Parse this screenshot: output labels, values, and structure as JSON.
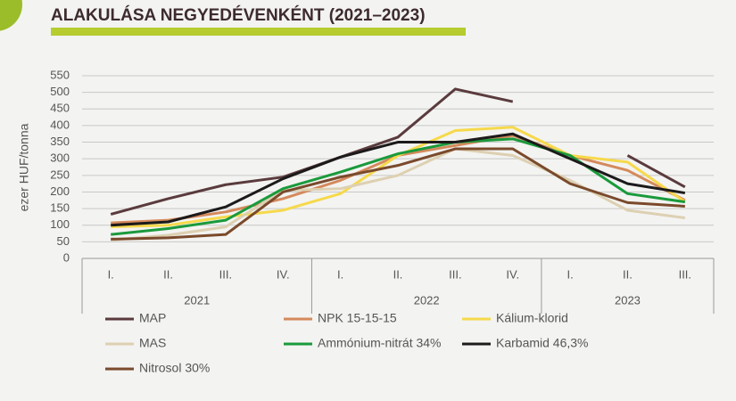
{
  "chart_data": {
    "type": "line",
    "title": "ALAKULÁSA NEGYEDÉVENKÉNT (2021–2023)",
    "y_label": "ezer HUF/tonna",
    "category_groups": [
      {
        "name": "2021",
        "categories": [
          "I.",
          "II.",
          "III.",
          "IV."
        ]
      },
      {
        "name": "2022",
        "categories": [
          "I.",
          "II.",
          "III.",
          "IV."
        ]
      },
      {
        "name": "2023",
        "categories": [
          "I.",
          "II.",
          "III."
        ]
      }
    ],
    "ylim": [
      0,
      550
    ],
    "yticks": [
      0,
      50,
      100,
      150,
      200,
      250,
      300,
      350,
      400,
      450,
      500,
      550
    ],
    "grid": true,
    "series": [
      {
        "name": "MAP",
        "color": "#5a3b3d",
        "values": [
          133,
          180,
          222,
          245,
          305,
          365,
          510,
          472,
          null,
          310,
          215
        ]
      },
      {
        "name": "NPK 15-15-15",
        "color": "#d48a5c",
        "values": [
          107,
          115,
          140,
          180,
          235,
          310,
          340,
          370,
          310,
          265,
          175
        ]
      },
      {
        "name": "Kálium-klorid",
        "color": "#f6d94c",
        "values": [
          95,
          100,
          125,
          145,
          195,
          310,
          385,
          395,
          310,
          290,
          170
        ]
      },
      {
        "name": "MAS",
        "color": "#ddd0b2",
        "values": [
          55,
          70,
          95,
          205,
          210,
          250,
          330,
          310,
          235,
          145,
          122
        ]
      },
      {
        "name": "Ammónium-nitrát 34%",
        "color": "#1a9a3c",
        "values": [
          72,
          90,
          115,
          210,
          260,
          315,
          350,
          360,
          310,
          195,
          170
        ]
      },
      {
        "name": "Karbamid 46,3%",
        "color": "#1c1a1a",
        "values": [
          100,
          110,
          155,
          240,
          305,
          350,
          350,
          375,
          300,
          225,
          197
        ]
      },
      {
        "name": "Nitrosol 30%",
        "color": "#7a4a2c",
        "values": [
          58,
          62,
          72,
          200,
          245,
          280,
          330,
          330,
          225,
          168,
          157
        ]
      }
    ]
  }
}
